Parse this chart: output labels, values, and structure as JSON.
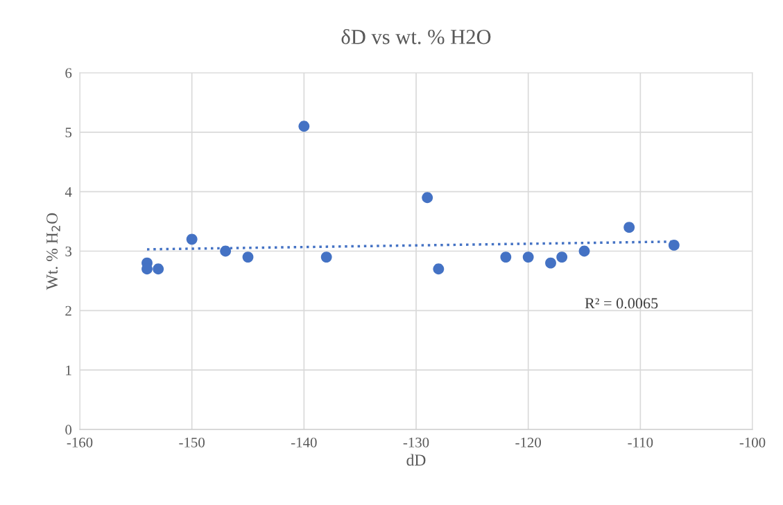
{
  "chart_data": {
    "type": "scatter",
    "title": "δD vs wt. % H2O",
    "xlabel": "dD",
    "ylabel": "Wt. % H$_{2}$O",
    "xlim": [
      -160,
      -100
    ],
    "xticks": [
      -160,
      -150,
      -140,
      -130,
      -120,
      -110,
      -100
    ],
    "ylim": [
      0,
      6
    ],
    "yticks": [
      0,
      1,
      2,
      3,
      4,
      5,
      6
    ],
    "grid": true,
    "marker": "circle",
    "series": [
      {
        "color": "#4472c4",
        "x": [
          -154,
          -154,
          -153,
          -150,
          -147,
          -145,
          -140,
          -138,
          -129,
          -128,
          -122,
          -120,
          -118,
          -117,
          -115,
          -111,
          -107
        ],
        "values": [
          2.8,
          2.7,
          2.7,
          3.2,
          3.0,
          2.9,
          5.1,
          2.9,
          3.9,
          2.7,
          2.9,
          2.9,
          2.8,
          2.9,
          3.0,
          3.4,
          3.1
        ]
      },
      {
        "type": "line",
        "color": "#4472c4",
        "marker": "none",
        "line_style": "dotted",
        "x": [
          -154,
          -107
        ],
        "values": [
          3.03,
          3.16
        ]
      }
    ],
    "annotations": [
      "R² = 0.0065"
    ]
  }
}
